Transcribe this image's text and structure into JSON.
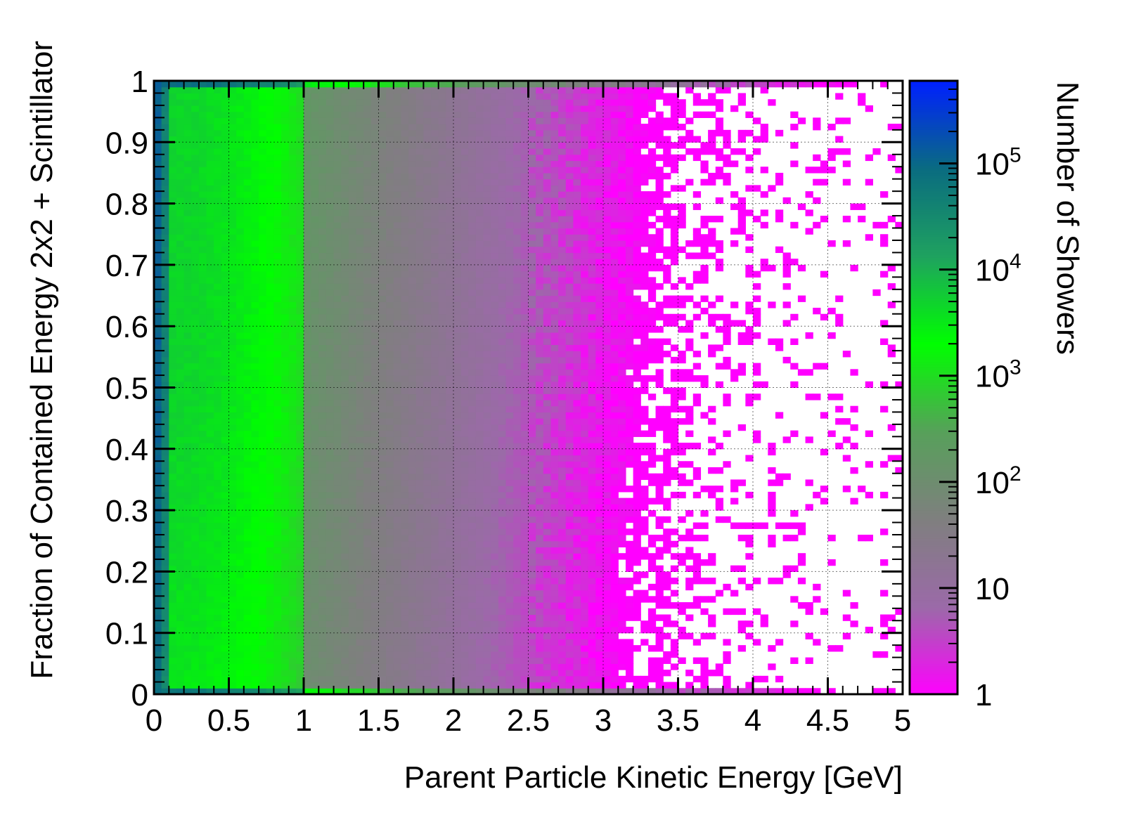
{
  "chart_data": {
    "type": "heatmap",
    "xlabel": "Parent Particle Kinetic Energy [GeV]",
    "ylabel": "Fraction of Contained Energy 2x2 + Scintillator",
    "zlabel": "Number of Showers",
    "xlim": [
      0,
      5
    ],
    "ylim": [
      0,
      1
    ],
    "x_ticks": [
      "0",
      "0.5",
      "1",
      "1.5",
      "2",
      "2.5",
      "3",
      "3.5",
      "4",
      "4.5",
      "5"
    ],
    "y_ticks": [
      "0",
      "0.1",
      "0.2",
      "0.3",
      "0.4",
      "0.5",
      "0.6",
      "0.7",
      "0.8",
      "0.9",
      "1"
    ],
    "z_scale": "log",
    "z_range": [
      1,
      600000
    ],
    "z_ticks": [
      {
        "value": 1,
        "base": "1",
        "exp": ""
      },
      {
        "value": 10,
        "base": "10",
        "exp": ""
      },
      {
        "value": 100,
        "base": "10",
        "exp": "2"
      },
      {
        "value": 1000,
        "base": "10",
        "exp": "3"
      },
      {
        "value": 10000,
        "base": "10",
        "exp": "4"
      },
      {
        "value": 100000,
        "base": "10",
        "exp": "5"
      }
    ],
    "bins": {
      "nx": 100,
      "ny": 100
    },
    "density_model": {
      "description": "approximate counts per bin: peak near x=0.1-0.5 GeV at high fraction, decaying with energy; sparse single counts beyond ~3 GeV",
      "low_energy_peak_counts": 3000,
      "edge_bin_counts": 100000,
      "mid_energy_counts_at_1GeV": 150,
      "counts_at_2GeV": 15,
      "counts_at_3GeV": 2,
      "sparse_region_start_GeV": 2.5
    },
    "grid": true,
    "colorscale": [
      "#ff00ff",
      "#9b6aa8",
      "#7f7f7f",
      "#57a05a",
      "#00ff00",
      "#1fa25f",
      "#0a6c80",
      "#0020ff"
    ]
  }
}
